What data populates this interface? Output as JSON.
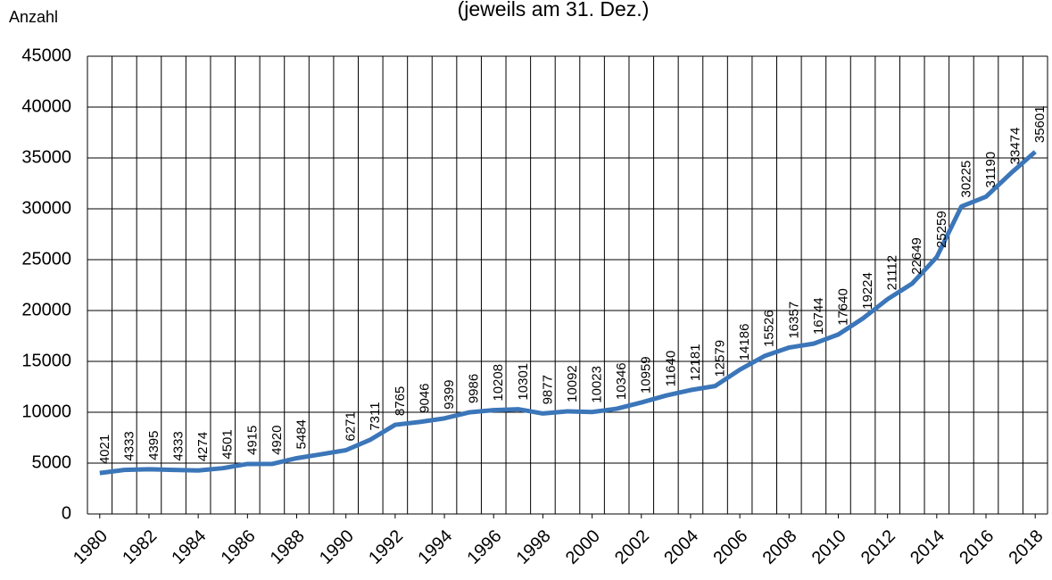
{
  "chart_data": {
    "type": "line",
    "subtitle": "(jeweils am 31. Dez.)",
    "y_label": "Anzahl",
    "x": [
      1980,
      1981,
      1982,
      1983,
      1984,
      1985,
      1986,
      1987,
      1988,
      1989,
      1990,
      1991,
      1992,
      1993,
      1994,
      1995,
      1996,
      1997,
      1998,
      1999,
      2000,
      2001,
      2002,
      2003,
      2004,
      2005,
      2006,
      2007,
      2008,
      2009,
      2010,
      2011,
      2012,
      2013,
      2014,
      2015,
      2016,
      2017,
      2018
    ],
    "xlim": [
      1979.5,
      2018.5
    ],
    "xticks": [
      1980,
      1982,
      1984,
      1986,
      1988,
      1990,
      1992,
      1994,
      1996,
      1998,
      2000,
      2002,
      2004,
      2006,
      2008,
      2010,
      2012,
      2014,
      2016,
      2018
    ],
    "series": [
      {
        "color": "#3b76b9",
        "values": [
          4021,
          4333,
          4395,
          4333,
          4274,
          4501,
          4915,
          4920,
          5484,
          5870,
          6271,
          7311,
          8765,
          9046,
          9399,
          9986,
          10208,
          10301,
          9877,
          10092,
          10023,
          10346,
          10959,
          11640,
          12181,
          12579,
          14186,
          15526,
          16357,
          16744,
          17640,
          19224,
          21112,
          22649,
          25259,
          30225,
          31190,
          33474,
          35601
        ],
        "value_labels": [
          "4021",
          "4333",
          "4395",
          "4333",
          "4274",
          "4501",
          "4915",
          "4920",
          "5484",
          null,
          "6271",
          "7311",
          "8765",
          "9046",
          "9399",
          "9986",
          "10208",
          "10301",
          "9877",
          "10092",
          "10023",
          "10346",
          "10959",
          "11640",
          "12181",
          "12579",
          "14186",
          "15526",
          "16357",
          "16744",
          "17640",
          "19224",
          "21112",
          "22649",
          "25259",
          "30225",
          "31190",
          "33474",
          "35601"
        ]
      }
    ],
    "ylim": [
      0,
      45000
    ],
    "yticks": [
      0,
      5000,
      10000,
      15000,
      20000,
      25000,
      30000,
      35000,
      40000,
      45000
    ],
    "grid": true
  }
}
